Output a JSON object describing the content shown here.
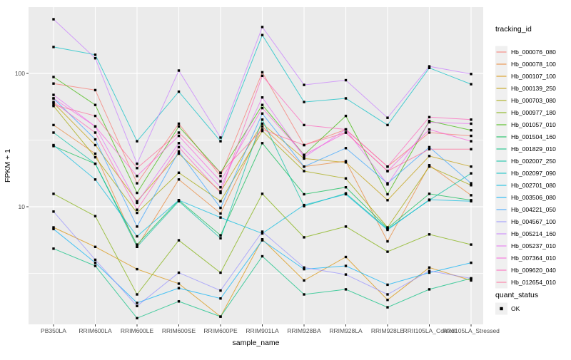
{
  "page": {
    "background": "#FFFFFF"
  },
  "chart_data": {
    "type": "line",
    "title": "",
    "xlabel": "sample_name",
    "ylabel": "FPKM + 1",
    "y_scale": "log10",
    "ylim": [
      1.3,
      316
    ],
    "grid": true,
    "legend_position": "right",
    "panel_bg": "#EBEBEB",
    "grid_color": "#FFFFFF",
    "axis_text_color": "#4D4D4D",
    "axis_title_color": "#000000",
    "legend_key_bg": "#F0F0F0",
    "point_style": {
      "color": "#000000",
      "shape": "square"
    },
    "x_categories": [
      "PB350LA",
      "RRIM600LA",
      "RRIM600LE",
      "RRIM600SE",
      "RRIM600PE",
      "RRIM901LA",
      "RRIM928BA",
      "RRIM928LA",
      "RRIM928LE",
      "RRII105LA_Control",
      "RRII105LA_Stressed"
    ],
    "y_axis_ticks": [
      {
        "label": "100",
        "value": 100
      },
      {
        "label": "10",
        "value": 10
      }
    ],
    "y_minor_gridlines": [
      3.162,
      31.62,
      316.2
    ],
    "legend": {
      "tracking_id_title": "tracking_id",
      "quant_status_title": "quant_status",
      "quant_status_items": [
        "OK"
      ]
    },
    "series": [
      {
        "name": "Hb_000076_080",
        "color": "#F8766D",
        "values": [
          84,
          75,
          15,
          42,
          17,
          102,
          29,
          38,
          20,
          36,
          34
        ]
      },
      {
        "name": "Hb_000078_100",
        "color": "#EA8331",
        "values": [
          41,
          25,
          5.0,
          16,
          8.9,
          40,
          20,
          22,
          5.5,
          20.5,
          12.2
        ]
      },
      {
        "name": "Hb_000107_100",
        "color": "#D89000",
        "values": [
          7.0,
          5.0,
          3.4,
          2.65,
          1.5,
          5.7,
          2.8,
          4.2,
          2.0,
          3.5,
          2.8
        ]
      },
      {
        "name": "Hb_000139_250",
        "color": "#C09B00",
        "values": [
          60,
          29,
          11,
          25,
          13,
          42,
          23,
          21.5,
          11.2,
          24,
          20
        ]
      },
      {
        "name": "Hb_000703_080",
        "color": "#A3A500",
        "values": [
          57,
          23.5,
          9.0,
          18,
          11,
          37,
          18.5,
          16.3,
          7.0,
          20,
          14.5
        ]
      },
      {
        "name": "Hb_000977_180",
        "color": "#7CAE00",
        "values": [
          12.5,
          8.5,
          2.2,
          5.6,
          3.2,
          12.5,
          5.9,
          7.1,
          4.6,
          6.2,
          5.2
        ]
      },
      {
        "name": "Hb_001057_010",
        "color": "#39B600",
        "values": [
          94,
          58,
          12.7,
          40,
          18,
          58,
          24.5,
          48,
          12.4,
          44,
          37.5
        ]
      },
      {
        "name": "Hb_001504_160",
        "color": "#00BB4E",
        "values": [
          28.5,
          21,
          5.2,
          11.2,
          6.1,
          30,
          12.4,
          14,
          6.9,
          12.5,
          11.2
        ]
      },
      {
        "name": "Hb_001829_010",
        "color": "#00BF7D",
        "values": [
          4.85,
          3.6,
          1.46,
          1.95,
          1.5,
          4.25,
          2.2,
          2.4,
          1.76,
          2.4,
          2.9
        ]
      },
      {
        "name": "Hb_002007_250",
        "color": "#00C1A3",
        "values": [
          36,
          21,
          5.0,
          11,
          5.8,
          45,
          10.1,
          12.6,
          6.8,
          11.2,
          17.8
        ]
      },
      {
        "name": "Hb_002097_090",
        "color": "#00BFC4",
        "values": [
          158,
          138,
          31,
          73,
          31,
          194,
          61,
          65,
          41,
          110,
          83
        ]
      },
      {
        "name": "Hb_002701_080",
        "color": "#00BAE0",
        "values": [
          29,
          16,
          6.0,
          11.2,
          8.3,
          6.3,
          10.3,
          12.4,
          6.7,
          11.3,
          11.0
        ]
      },
      {
        "name": "Hb_003506_080",
        "color": "#00B0F6",
        "values": [
          6.8,
          3.8,
          1.9,
          2.45,
          2.05,
          5.6,
          3.4,
          3.6,
          2.6,
          3.2,
          3.8
        ]
      },
      {
        "name": "Hb_004221_050",
        "color": "#35A2FF",
        "values": [
          65,
          32,
          7.1,
          26,
          9.8,
          50,
          20,
          27.5,
          15,
          28,
          15
        ]
      },
      {
        "name": "Hb_004567_100",
        "color": "#9590FF",
        "values": [
          9.2,
          4.0,
          1.8,
          3.2,
          2.35,
          6.5,
          3.5,
          3.1,
          2.2,
          3.3,
          2.9
        ]
      },
      {
        "name": "Hb_005214_160",
        "color": "#C77CFF",
        "values": [
          255,
          130,
          21,
          105,
          33,
          223,
          82,
          89,
          46.5,
          113,
          99
        ]
      },
      {
        "name": "Hb_005237_010",
        "color": "#E76BF3",
        "values": [
          69,
          40,
          10.7,
          30,
          14,
          66,
          23.5,
          38,
          14.7,
          43,
          42
        ]
      },
      {
        "name": "Hb_007364_010",
        "color": "#FA62DB",
        "values": [
          65,
          40,
          17,
          34,
          15.5,
          55,
          24.5,
          36,
          18.5,
          38,
          31
        ]
      },
      {
        "name": "Hb_009620_040",
        "color": "#FF62BC",
        "values": [
          61,
          36,
          9.5,
          28,
          12.7,
          96,
          41,
          38,
          20,
          47,
          45
        ]
      },
      {
        "name": "Hb_012654_010",
        "color": "#FF6A98",
        "values": [
          58,
          48,
          19.5,
          36,
          18,
          38,
          29,
          36,
          18.5,
          27,
          27
        ]
      }
    ]
  }
}
